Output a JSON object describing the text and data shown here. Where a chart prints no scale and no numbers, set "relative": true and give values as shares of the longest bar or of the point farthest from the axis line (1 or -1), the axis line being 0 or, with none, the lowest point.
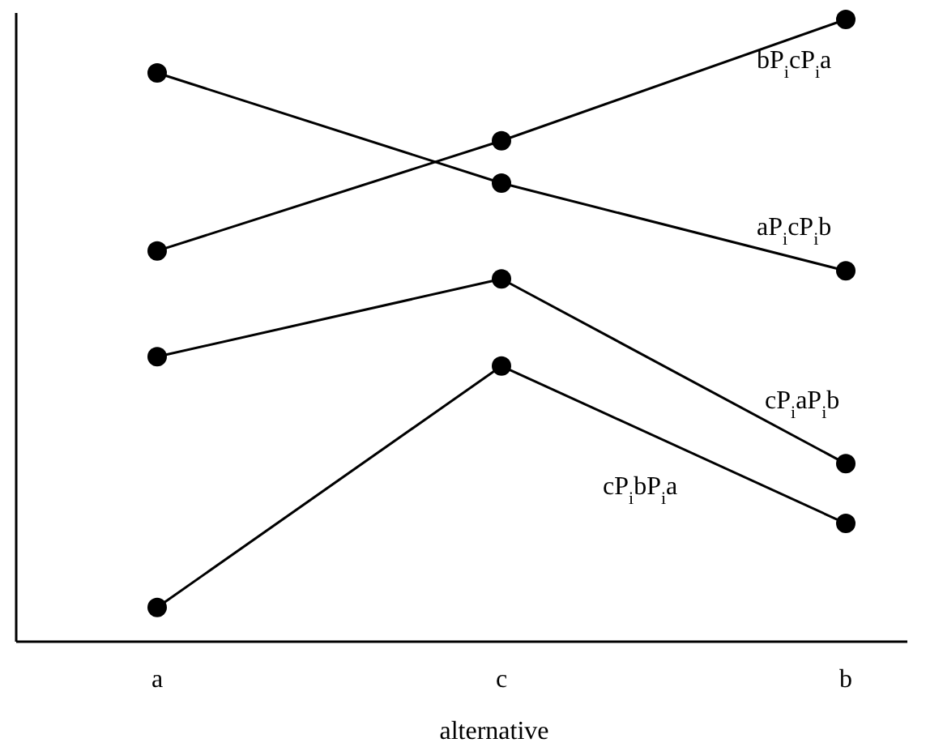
{
  "chart_data": {
    "type": "line",
    "xlabel": "alternative",
    "categories": [
      "a",
      "c",
      "b"
    ],
    "relative": true,
    "marker": "circle",
    "line_style": "solid",
    "series": [
      {
        "name": "bP$_{i}$cP$_{i}$a",
        "color": "#000000",
        "values": [
          0.628,
          0.805,
          1
        ]
      },
      {
        "name": "aP$_{i}$cP$_{i}$b",
        "color": "#000000",
        "values": [
          0.914,
          0.737,
          0.596
        ]
      },
      {
        "name": "cP$_{i}$aP$_{i}$b",
        "color": "#000000",
        "values": [
          0.458,
          0.583,
          0.286
        ]
      },
      {
        "name": "cP$_{i}$bP$_{i}$a",
        "color": "#000000",
        "values": [
          0.055,
          0.443,
          0.19
        ]
      }
    ]
  }
}
